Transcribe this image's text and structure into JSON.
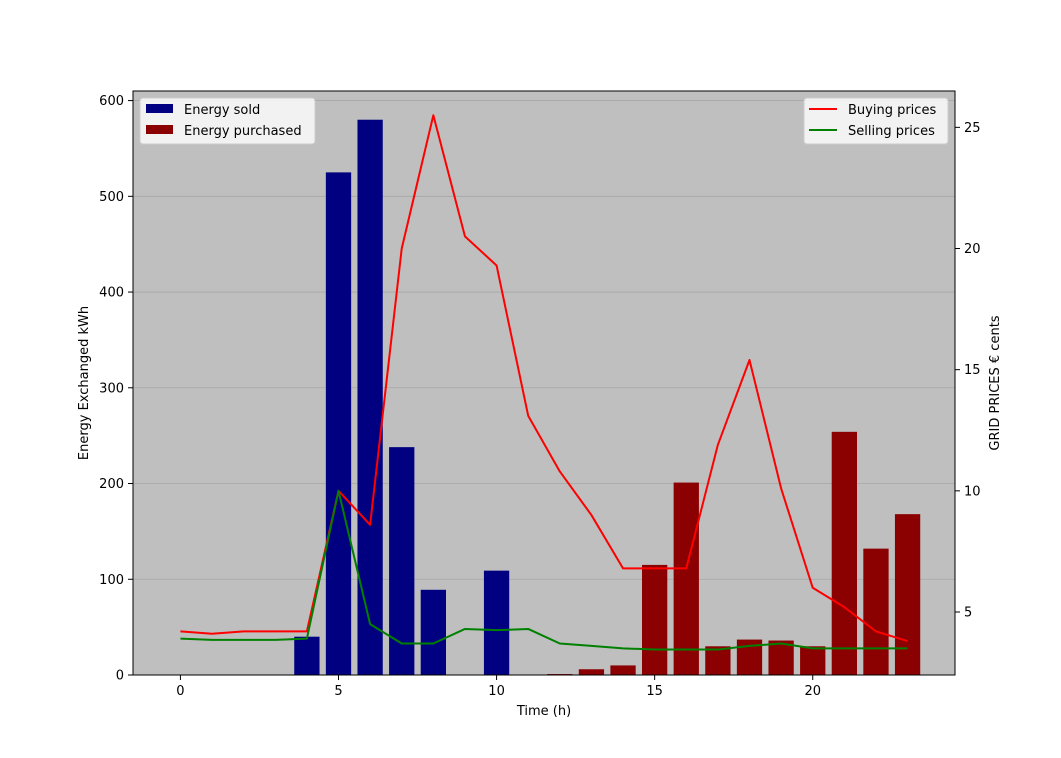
{
  "chart_data": {
    "type": "bar",
    "title": "",
    "xlabel": "Time (h)",
    "ylabel": "Energy Exchanged kWh",
    "y2label": "GRID PRICES € cents",
    "xlim": [
      -1.5,
      24.5
    ],
    "ylim": [
      0,
      610
    ],
    "y2lim": [
      2.4,
      26.5
    ],
    "xticks": [
      0,
      5,
      10,
      15,
      20
    ],
    "yticks": [
      0,
      100,
      200,
      300,
      400,
      500,
      600
    ],
    "y2ticks": [
      5,
      10,
      15,
      20,
      25
    ],
    "grid": true,
    "background": "#bfbfbf",
    "x": [
      0,
      1,
      2,
      3,
      4,
      5,
      6,
      7,
      8,
      9,
      10,
      11,
      12,
      13,
      14,
      15,
      16,
      17,
      18,
      19,
      20,
      21,
      22,
      23
    ],
    "bar_series": [
      {
        "name": "Energy sold",
        "color": "#000080",
        "values": [
          0,
          0,
          0,
          0,
          40,
          525,
          580,
          238,
          89,
          0,
          109,
          0,
          0,
          0,
          0,
          0,
          0,
          0,
          0,
          0,
          0,
          0,
          0,
          0
        ]
      },
      {
        "name": "Energy purchased",
        "color": "#8b0000",
        "values": [
          0,
          0,
          0,
          0,
          0,
          0,
          0,
          0,
          0,
          0,
          0,
          0,
          1,
          6,
          10,
          115,
          201,
          30,
          37,
          36,
          30,
          254,
          132,
          168
        ]
      }
    ],
    "line_series": [
      {
        "name": "Buying prices",
        "color": "#ff0000",
        "axis": "right",
        "values": [
          4.2,
          4.1,
          4.2,
          4.2,
          4.2,
          10.0,
          8.6,
          20.0,
          25.5,
          20.5,
          19.3,
          13.1,
          10.8,
          9.0,
          6.8,
          6.8,
          6.8,
          11.9,
          15.4,
          10.1,
          6.0,
          5.2,
          4.2,
          3.8
        ]
      },
      {
        "name": "Selling prices",
        "color": "#008000",
        "axis": "right",
        "values": [
          3.9,
          3.85,
          3.85,
          3.85,
          3.9,
          10.0,
          4.5,
          3.7,
          3.7,
          4.3,
          4.25,
          4.3,
          3.7,
          3.6,
          3.5,
          3.45,
          3.45,
          3.45,
          3.6,
          3.7,
          3.5,
          3.5,
          3.5,
          3.5
        ]
      }
    ],
    "legend_left": {
      "placement": "top-left",
      "entries": [
        "Energy sold",
        "Energy purchased"
      ]
    },
    "legend_right": {
      "placement": "top-right",
      "entries": [
        "Buying prices",
        "Selling prices"
      ]
    }
  }
}
